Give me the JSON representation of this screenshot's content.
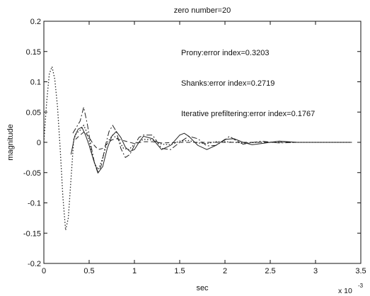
{
  "chart_data": {
    "type": "line",
    "title": "zero number=20",
    "xlabel": "sec",
    "ylabel": "magnitude",
    "x_exponent_label": "x 10",
    "x_exponent_power": "-3",
    "xlim": [
      0,
      3.5
    ],
    "ylim": [
      -0.2,
      0.2
    ],
    "x_ticks": [
      "0",
      "0.5",
      "1",
      "1.5",
      "2",
      "2.5",
      "3",
      "3.5"
    ],
    "y_ticks": [
      "-0.2",
      "-0.15",
      "-0.1",
      "-0.05",
      "0",
      "0.05",
      "0.1",
      "0.15",
      "0.2"
    ],
    "grid": false,
    "annotations": [
      "Prony:error index=0.3203",
      "Shanks:error index=0.2719",
      "Iterative prefiltering:error index=0.1767"
    ],
    "series": [
      {
        "style": "dotted",
        "color": "#222222",
        "x": [
          0,
          0.03,
          0.06,
          0.09,
          0.12,
          0.15,
          0.18,
          0.21,
          0.24,
          0.27,
          0.3,
          0.33,
          0.36,
          0.4,
          0.44,
          0.48,
          0.52,
          0.56,
          0.6,
          0.64,
          0.7,
          0.76,
          0.82,
          0.88,
          0.94,
          1.0,
          1.1,
          1.2,
          1.3,
          1.4,
          1.5,
          1.6,
          1.7,
          1.8,
          1.9,
          2.0,
          2.2,
          2.4,
          2.6,
          2.8,
          3.0,
          3.2,
          3.4
        ],
        "y": [
          0.0,
          0.065,
          0.113,
          0.125,
          0.105,
          0.06,
          -0.01,
          -0.09,
          -0.145,
          -0.125,
          -0.06,
          0.005,
          0.015,
          0.02,
          0.028,
          0.015,
          -0.01,
          -0.035,
          -0.045,
          -0.03,
          0.0,
          0.012,
          0.005,
          -0.01,
          -0.012,
          -0.003,
          0.005,
          0.004,
          -0.003,
          -0.004,
          0.002,
          0.003,
          -0.001,
          -0.002,
          0.001,
          0.001,
          -0.001,
          0.0,
          0.0,
          0.0,
          0.0,
          0.0,
          0.0
        ]
      },
      {
        "style": "solid",
        "color": "#222222",
        "x": [
          0.3,
          0.34,
          0.38,
          0.42,
          0.46,
          0.5,
          0.55,
          0.6,
          0.65,
          0.7,
          0.75,
          0.8,
          0.85,
          0.9,
          0.95,
          1.0,
          1.05,
          1.1,
          1.2,
          1.3,
          1.4,
          1.5,
          1.55,
          1.6,
          1.7,
          1.8,
          1.9,
          2.0,
          2.1,
          2.2,
          2.3,
          2.4,
          2.6,
          2.8,
          3.0,
          3.2,
          3.4
        ],
        "y": [
          -0.02,
          0.01,
          0.022,
          0.025,
          0.012,
          -0.005,
          -0.03,
          -0.05,
          -0.04,
          -0.01,
          0.01,
          0.018,
          0.008,
          -0.008,
          -0.015,
          -0.012,
          0.0,
          0.01,
          0.006,
          -0.012,
          -0.005,
          0.012,
          0.015,
          0.01,
          -0.005,
          -0.012,
          -0.005,
          0.005,
          0.006,
          0.0,
          -0.004,
          -0.002,
          0.002,
          0.0,
          0.0,
          0.0,
          0.0
        ]
      },
      {
        "style": "dashdot",
        "color": "#222222",
        "x": [
          0.32,
          0.36,
          0.4,
          0.44,
          0.48,
          0.52,
          0.56,
          0.6,
          0.64,
          0.68,
          0.72,
          0.76,
          0.8,
          0.85,
          0.9,
          0.95,
          1.0,
          1.05,
          1.1,
          1.2,
          1.3,
          1.4,
          1.5,
          1.6,
          1.7,
          1.8,
          1.9,
          2.0,
          2.05,
          2.1,
          2.2,
          2.4,
          2.6,
          2.8,
          3.0,
          3.2,
          3.4
        ],
        "y": [
          0.015,
          0.025,
          0.035,
          0.058,
          0.03,
          -0.005,
          -0.035,
          -0.052,
          -0.035,
          -0.005,
          0.018,
          0.028,
          0.018,
          -0.01,
          -0.025,
          -0.02,
          -0.005,
          0.008,
          0.012,
          0.012,
          -0.01,
          -0.012,
          0.0,
          0.01,
          0.006,
          -0.006,
          -0.005,
          0.004,
          0.01,
          0.005,
          -0.003,
          0.002,
          -0.001,
          0.0,
          0.0,
          0.0,
          0.0
        ]
      },
      {
        "style": "dashed",
        "color": "#222222",
        "x": [
          0.35,
          0.4,
          0.45,
          0.5,
          0.55,
          0.6,
          0.65,
          0.7,
          0.75,
          0.8,
          0.9,
          1.0,
          1.1,
          1.2,
          1.3,
          1.5,
          1.7,
          2.0,
          2.3,
          2.6,
          3.0,
          3.4
        ],
        "y": [
          0.005,
          0.012,
          0.018,
          0.008,
          -0.004,
          -0.012,
          -0.01,
          -0.002,
          0.004,
          0.006,
          0.002,
          -0.002,
          0.001,
          0.001,
          -0.001,
          0.0,
          0.0,
          0.0,
          0.0,
          0.0,
          0.0,
          0.0
        ]
      }
    ]
  }
}
